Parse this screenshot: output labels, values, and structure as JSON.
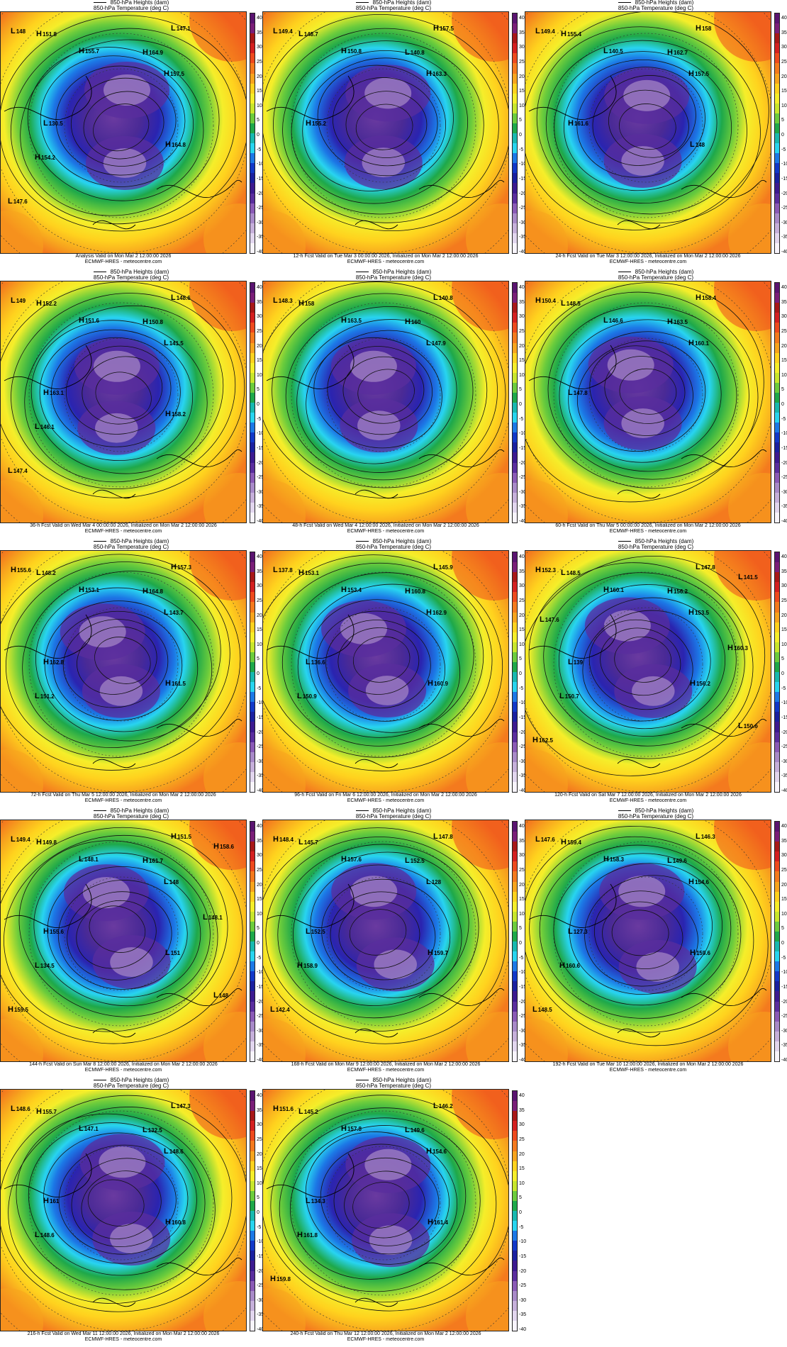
{
  "header_lines": [
    "850-hPa Heights (dam)",
    "850-hPa Temperature (deg C)"
  ],
  "credit": "ECMWF-HRES - meteocentre.com",
  "colorbar": {
    "ticks": [
      "40",
      "35",
      "30",
      "25",
      "20",
      "15",
      "10",
      "5",
      "0",
      "-5",
      "-10",
      "-15",
      "-20",
      "-25",
      "-30",
      "-35",
      "-40"
    ],
    "colors": [
      "#5a1470",
      "#7a1e78",
      "#a81818",
      "#d42020",
      "#ee4a1e",
      "#f47a1e",
      "#f7a41e",
      "#ffd21e",
      "#f5ee2a",
      "#c8e62c",
      "#6ccc3c",
      "#1ea84a",
      "#18b8b0",
      "#28d4f0",
      "#1c78e6",
      "#1238c8",
      "#1a20a0",
      "#3c1a90",
      "#5a2e9e",
      "#8a5ab6",
      "#a88ac8",
      "#c6b0da",
      "#e2d6ee",
      "#f8f4fc"
    ]
  },
  "panels": [
    {
      "valid": "Analysis Valid on Mon Mar  2 12:00:00 2026",
      "labels": [
        {
          "t": "L",
          "v": "148"
        },
        {
          "t": "H",
          "v": "151.8"
        },
        {
          "t": "L",
          "v": "147.1"
        },
        {
          "t": "H",
          "v": "155.7"
        },
        {
          "t": "H",
          "v": "164.9"
        },
        {
          "t": "H",
          "v": "157.5"
        },
        {
          "t": "L",
          "v": "130.5"
        },
        {
          "t": "H",
          "v": "164.8"
        },
        {
          "t": "H",
          "v": "154.2"
        },
        {
          "t": "L",
          "v": "147.6"
        }
      ]
    },
    {
      "valid": "12-h Fcst Valid on Tue Mar  3 00:00:00 2026, Initialized on Mon Mar  2 12:00:00 2026",
      "labels": [
        {
          "t": "L",
          "v": "149.4"
        },
        {
          "t": "L",
          "v": "148.7"
        },
        {
          "t": "H",
          "v": "157.5"
        },
        {
          "t": "H",
          "v": "150.8"
        },
        {
          "t": "L",
          "v": "140.8"
        },
        {
          "t": "H",
          "v": "163.3"
        },
        {
          "t": "H",
          "v": "155.2"
        }
      ]
    },
    {
      "valid": "24-h Fcst Valid on Tue Mar  3 12:00:00 2026, Initialized on Mon Mar  2 12:00:00 2026",
      "labels": [
        {
          "t": "L",
          "v": "149.4"
        },
        {
          "t": "H",
          "v": "155.4"
        },
        {
          "t": "H",
          "v": "158"
        },
        {
          "t": "L",
          "v": "140.5"
        },
        {
          "t": "H",
          "v": "162.7"
        },
        {
          "t": "H",
          "v": "157.5"
        },
        {
          "t": "H",
          "v": "161.6"
        },
        {
          "t": "L",
          "v": "148"
        }
      ]
    },
    {
      "valid": "36-h Fcst Valid on Wed Mar  4 00:00:00 2026, Initialized on Mon Mar  2 12:00:00 2026",
      "labels": [
        {
          "t": "L",
          "v": "149"
        },
        {
          "t": "H",
          "v": "152.2"
        },
        {
          "t": "L",
          "v": "148.6"
        },
        {
          "t": "H",
          "v": "151.6"
        },
        {
          "t": "H",
          "v": "150.8"
        },
        {
          "t": "L",
          "v": "141.5"
        },
        {
          "t": "H",
          "v": "163.1"
        },
        {
          "t": "H",
          "v": "158.2"
        },
        {
          "t": "L",
          "v": "146.1"
        },
        {
          "t": "L",
          "v": "147.4"
        }
      ]
    },
    {
      "valid": "48-h Fcst Valid on Wed Mar  4 12:00:00 2026, Initialized on Mon Mar  2 12:00:00 2026",
      "labels": [
        {
          "t": "L",
          "v": "148.3"
        },
        {
          "t": "H",
          "v": "158"
        },
        {
          "t": "L",
          "v": "140.8"
        },
        {
          "t": "H",
          "v": "163.5"
        },
        {
          "t": "H",
          "v": "160"
        },
        {
          "t": "L",
          "v": "147.9"
        }
      ]
    },
    {
      "valid": "60-h Fcst Valid on Thu Mar  5 00:00:00 2026, Initialized on Mon Mar  2 12:00:00 2026",
      "labels": [
        {
          "t": "H",
          "v": "150.4"
        },
        {
          "t": "L",
          "v": "148.5"
        },
        {
          "t": "H",
          "v": "158.4"
        },
        {
          "t": "L",
          "v": "146.6"
        },
        {
          "t": "H",
          "v": "163.5"
        },
        {
          "t": "H",
          "v": "160.1"
        },
        {
          "t": "L",
          "v": "147.8"
        }
      ]
    },
    {
      "valid": "72-h Fcst Valid on Thu Mar  5 12:00:00 2026, Initialized on Mon Mar  2 12:00:00 2026",
      "labels": [
        {
          "t": "H",
          "v": "155.6"
        },
        {
          "t": "L",
          "v": "148.2"
        },
        {
          "t": "H",
          "v": "157.3"
        },
        {
          "t": "H",
          "v": "153.1"
        },
        {
          "t": "H",
          "v": "164.8"
        },
        {
          "t": "L",
          "v": "143.7"
        },
        {
          "t": "H",
          "v": "162.8"
        },
        {
          "t": "H",
          "v": "161.5"
        },
        {
          "t": "L",
          "v": "151.2"
        }
      ]
    },
    {
      "valid": "96-h Fcst Valid on Fri Mar  6 12:00:00 2026, Initialized on Mon Mar  2 12:00:00 2026",
      "labels": [
        {
          "t": "L",
          "v": "137.8"
        },
        {
          "t": "H",
          "v": "153.1"
        },
        {
          "t": "L",
          "v": "145.9"
        },
        {
          "t": "H",
          "v": "153.4"
        },
        {
          "t": "H",
          "v": "160.8"
        },
        {
          "t": "H",
          "v": "162.9"
        },
        {
          "t": "L",
          "v": "136.6"
        },
        {
          "t": "H",
          "v": "160.9"
        },
        {
          "t": "L",
          "v": "150.9"
        }
      ]
    },
    {
      "valid": "120-h Fcst Valid on Sat Mar  7 12:00:00 2026, Initialized on Mon Mar  2 12:00:00 2026",
      "labels": [
        {
          "t": "H",
          "v": "152.3"
        },
        {
          "t": "L",
          "v": "148.5"
        },
        {
          "t": "L",
          "v": "147.8"
        },
        {
          "t": "H",
          "v": "160.1"
        },
        {
          "t": "H",
          "v": "156.2"
        },
        {
          "t": "H",
          "v": "153.5"
        },
        {
          "t": "L",
          "v": "139"
        },
        {
          "t": "H",
          "v": "156.2"
        },
        {
          "t": "L",
          "v": "150.7"
        },
        {
          "t": "H",
          "v": "162.5"
        },
        {
          "t": "L",
          "v": "141.5"
        },
        {
          "t": "H",
          "v": "160.3"
        },
        {
          "t": "L",
          "v": "150.6"
        },
        {
          "t": "L",
          "v": "147.6"
        }
      ]
    },
    {
      "valid": "144-h Fcst Valid on Sun Mar  8 12:00:00 2026, Initialized on Mon Mar  2 12:00:00 2026",
      "labels": [
        {
          "t": "L",
          "v": "149.4"
        },
        {
          "t": "H",
          "v": "149.8"
        },
        {
          "t": "H",
          "v": "151.5"
        },
        {
          "t": "L",
          "v": "148.1"
        },
        {
          "t": "H",
          "v": "161.7"
        },
        {
          "t": "L",
          "v": "148"
        },
        {
          "t": "H",
          "v": "155.6"
        },
        {
          "t": "L",
          "v": "151"
        },
        {
          "t": "L",
          "v": "134.5"
        },
        {
          "t": "H",
          "v": "159.5"
        },
        {
          "t": "H",
          "v": "158.6"
        },
        {
          "t": "L",
          "v": "148.1"
        },
        {
          "t": "L",
          "v": "148"
        }
      ]
    },
    {
      "valid": "168-h Fcst Valid on Mon Mar  9 12:00:00 2026, Initialized on Mon Mar  2 12:00:00 2026",
      "labels": [
        {
          "t": "H",
          "v": "148.4"
        },
        {
          "t": "L",
          "v": "145.7"
        },
        {
          "t": "L",
          "v": "147.8"
        },
        {
          "t": "H",
          "v": "157.6"
        },
        {
          "t": "L",
          "v": "152.5"
        },
        {
          "t": "L",
          "v": "128"
        },
        {
          "t": "L",
          "v": "152.5"
        },
        {
          "t": "H",
          "v": "159.7"
        },
        {
          "t": "H",
          "v": "158.9"
        },
        {
          "t": "L",
          "v": "142.4"
        }
      ]
    },
    {
      "valid": "192-h Fcst Valid on Tue Mar 10 12:00:00 2026, Initialized on Mon Mar  2 12:00:00 2026",
      "labels": [
        {
          "t": "L",
          "v": "147.6"
        },
        {
          "t": "H",
          "v": "159.4"
        },
        {
          "t": "L",
          "v": "146.3"
        },
        {
          "t": "H",
          "v": "158.3"
        },
        {
          "t": "L",
          "v": "149.6"
        },
        {
          "t": "H",
          "v": "154.6"
        },
        {
          "t": "L",
          "v": "127.3"
        },
        {
          "t": "H",
          "v": "159.6"
        },
        {
          "t": "H",
          "v": "160.6"
        },
        {
          "t": "L",
          "v": "148.5"
        }
      ]
    },
    {
      "valid": "216-h Fcst Valid on Wed Mar 11 12:00:00 2026, Initialized on Mon Mar  2 12:00:00 2026",
      "labels": [
        {
          "t": "L",
          "v": "148.6"
        },
        {
          "t": "H",
          "v": "155.7"
        },
        {
          "t": "L",
          "v": "147.3"
        },
        {
          "t": "L",
          "v": "147.1"
        },
        {
          "t": "L",
          "v": "132.5"
        },
        {
          "t": "L",
          "v": "148.6"
        },
        {
          "t": "H",
          "v": "161"
        },
        {
          "t": "H",
          "v": "160.8"
        },
        {
          "t": "L",
          "v": "148.6"
        }
      ]
    },
    {
      "valid": "240-h Fcst Valid on Thu Mar 12 12:00:00 2026, Initialized on Mon Mar  2 12:00:00 2026",
      "labels": [
        {
          "t": "H",
          "v": "151.6"
        },
        {
          "t": "L",
          "v": "145.2"
        },
        {
          "t": "L",
          "v": "146.2"
        },
        {
          "t": "H",
          "v": "157.8"
        },
        {
          "t": "L",
          "v": "149.6"
        },
        {
          "t": "H",
          "v": "154.6"
        },
        {
          "t": "L",
          "v": "134.3"
        },
        {
          "t": "H",
          "v": "161.4"
        },
        {
          "t": "H",
          "v": "161.8"
        },
        {
          "t": "H",
          "v": "159.8"
        }
      ]
    }
  ]
}
